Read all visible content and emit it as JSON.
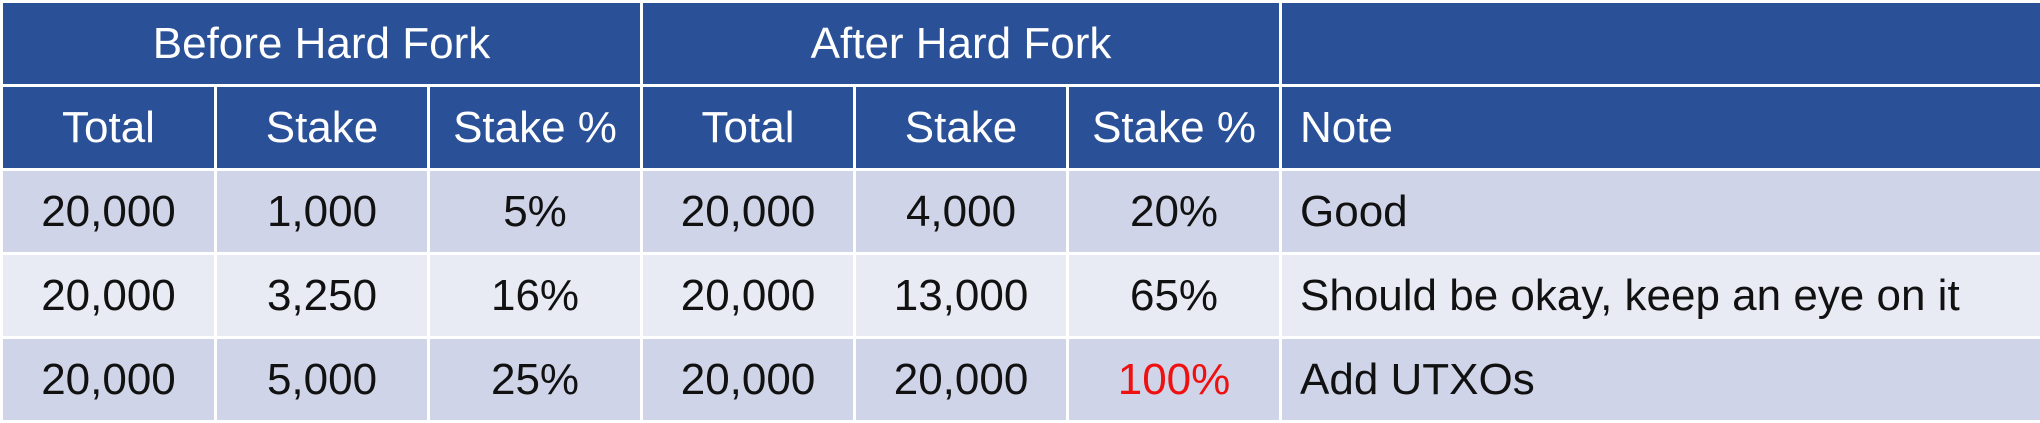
{
  "headers": {
    "group_before": "Before Hard Fork",
    "group_after": "After Hard Fork",
    "group_note": "",
    "columns": [
      "Total",
      "Stake",
      "Stake %",
      "Total",
      "Stake",
      "Stake %",
      "Note"
    ]
  },
  "rows": [
    {
      "before_total": "20,000",
      "before_stake": "1,000",
      "before_pct": "5%",
      "after_total": "20,000",
      "after_stake": "4,000",
      "after_pct": "20%",
      "note": "Good"
    },
    {
      "before_total": "20,000",
      "before_stake": "3,250",
      "before_pct": "16%",
      "after_total": "20,000",
      "after_stake": "13,000",
      "after_pct": "65%",
      "note": "Should be okay, keep an eye on it"
    },
    {
      "before_total": "20,000",
      "before_stake": "5,000",
      "before_pct": "25%",
      "after_total": "20,000",
      "after_stake": "20,000",
      "after_pct": "100%",
      "note": "Add UTXOs"
    }
  ],
  "colors": {
    "header_bg": "#2a5198",
    "row_odd_bg": "#cfd4e8",
    "row_even_bg": "#e8eaf4",
    "alert_text": "#ee1111"
  }
}
